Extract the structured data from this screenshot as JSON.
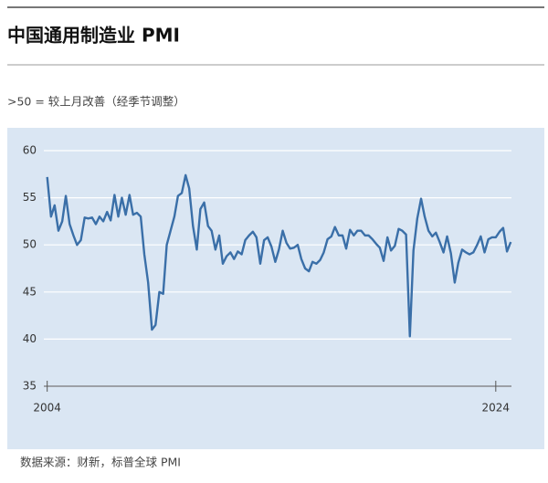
{
  "chart_data": {
    "type": "line",
    "title": "中国通用制造业 PMI",
    "subtitle": ">50 = 较上月改善（经季节调整）",
    "source": "数据来源：财新，标普全球 PMI",
    "x": [
      2004,
      2004.17,
      2004.33,
      2004.5,
      2004.67,
      2004.83,
      2005,
      2005.17,
      2005.33,
      2005.5,
      2005.67,
      2005.83,
      2006,
      2006.17,
      2006.33,
      2006.5,
      2006.67,
      2006.83,
      2007,
      2007.17,
      2007.33,
      2007.5,
      2007.67,
      2007.83,
      2008,
      2008.17,
      2008.33,
      2008.5,
      2008.67,
      2008.83,
      2009,
      2009.17,
      2009.33,
      2009.5,
      2009.67,
      2009.83,
      2010,
      2010.17,
      2010.33,
      2010.5,
      2010.67,
      2010.83,
      2011,
      2011.17,
      2011.33,
      2011.5,
      2011.67,
      2011.83,
      2012,
      2012.17,
      2012.33,
      2012.5,
      2012.67,
      2012.83,
      2013,
      2013.17,
      2013.33,
      2013.5,
      2013.67,
      2013.83,
      2014,
      2014.17,
      2014.33,
      2014.5,
      2014.67,
      2014.83,
      2015,
      2015.17,
      2015.33,
      2015.5,
      2015.67,
      2015.83,
      2016,
      2016.17,
      2016.33,
      2016.5,
      2016.67,
      2016.83,
      2017,
      2017.17,
      2017.33,
      2017.5,
      2017.67,
      2017.83,
      2018,
      2018.17,
      2018.33,
      2018.5,
      2018.67,
      2018.83,
      2019,
      2019.17,
      2019.33,
      2019.5,
      2019.67,
      2019.83,
      2020,
      2020.17,
      2020.33,
      2020.5,
      2020.67,
      2020.83,
      2021,
      2021.17,
      2021.33,
      2021.5,
      2021.67,
      2021.83,
      2022,
      2022.17,
      2022.33,
      2022.5,
      2022.67,
      2022.83,
      2023,
      2023.17,
      2023.33,
      2023.5,
      2023.67,
      2023.83,
      2024,
      2024.17,
      2024.33,
      2024.5,
      2024.67
    ],
    "values": [
      57.2,
      53.0,
      54.2,
      51.5,
      52.5,
      55.2,
      52.2,
      51.0,
      50.0,
      50.5,
      52.9,
      52.8,
      52.9,
      52.2,
      53.0,
      52.5,
      53.5,
      52.6,
      55.3,
      53.0,
      55.0,
      53.2,
      55.3,
      53.2,
      53.4,
      53.0,
      49.0,
      46.0,
      41.0,
      41.5,
      45.0,
      44.8,
      50.0,
      51.5,
      53.0,
      55.2,
      55.5,
      57.4,
      56.0,
      52.0,
      49.5,
      53.8,
      54.5,
      52.0,
      51.5,
      49.5,
      51.0,
      48.0,
      48.8,
      49.2,
      48.5,
      49.3,
      49.0,
      50.5,
      51.0,
      51.4,
      50.8,
      48.0,
      50.5,
      50.8,
      49.8,
      48.2,
      49.5,
      51.5,
      50.2,
      49.6,
      49.7,
      50.0,
      48.5,
      47.5,
      47.2,
      48.2,
      48.0,
      48.4,
      49.2,
      50.6,
      50.9,
      51.9,
      51.0,
      51.0,
      49.6,
      51.6,
      51.0,
      51.5,
      51.5,
      51.0,
      51.0,
      50.6,
      50.1,
      49.7,
      48.3,
      50.8,
      49.4,
      49.9,
      51.7,
      51.5,
      51.1,
      40.3,
      49.4,
      52.8,
      54.9,
      53.0,
      51.5,
      50.9,
      51.3,
      50.3,
      49.2,
      50.9,
      49.1,
      46.0,
      48.1,
      49.5,
      49.2,
      49.0,
      49.2,
      50.0,
      50.9,
      49.2,
      50.6,
      50.8,
      50.8,
      51.4,
      51.8,
      49.3,
      50.3
    ],
    "color": "#3a6fa8",
    "xlim": [
      2003.85,
      2024.7
    ],
    "xticks": [
      2004,
      2024
    ],
    "ylim": [
      35,
      60
    ],
    "yticks": [
      35,
      40,
      45,
      50,
      55,
      60
    ],
    "grid": true
  }
}
